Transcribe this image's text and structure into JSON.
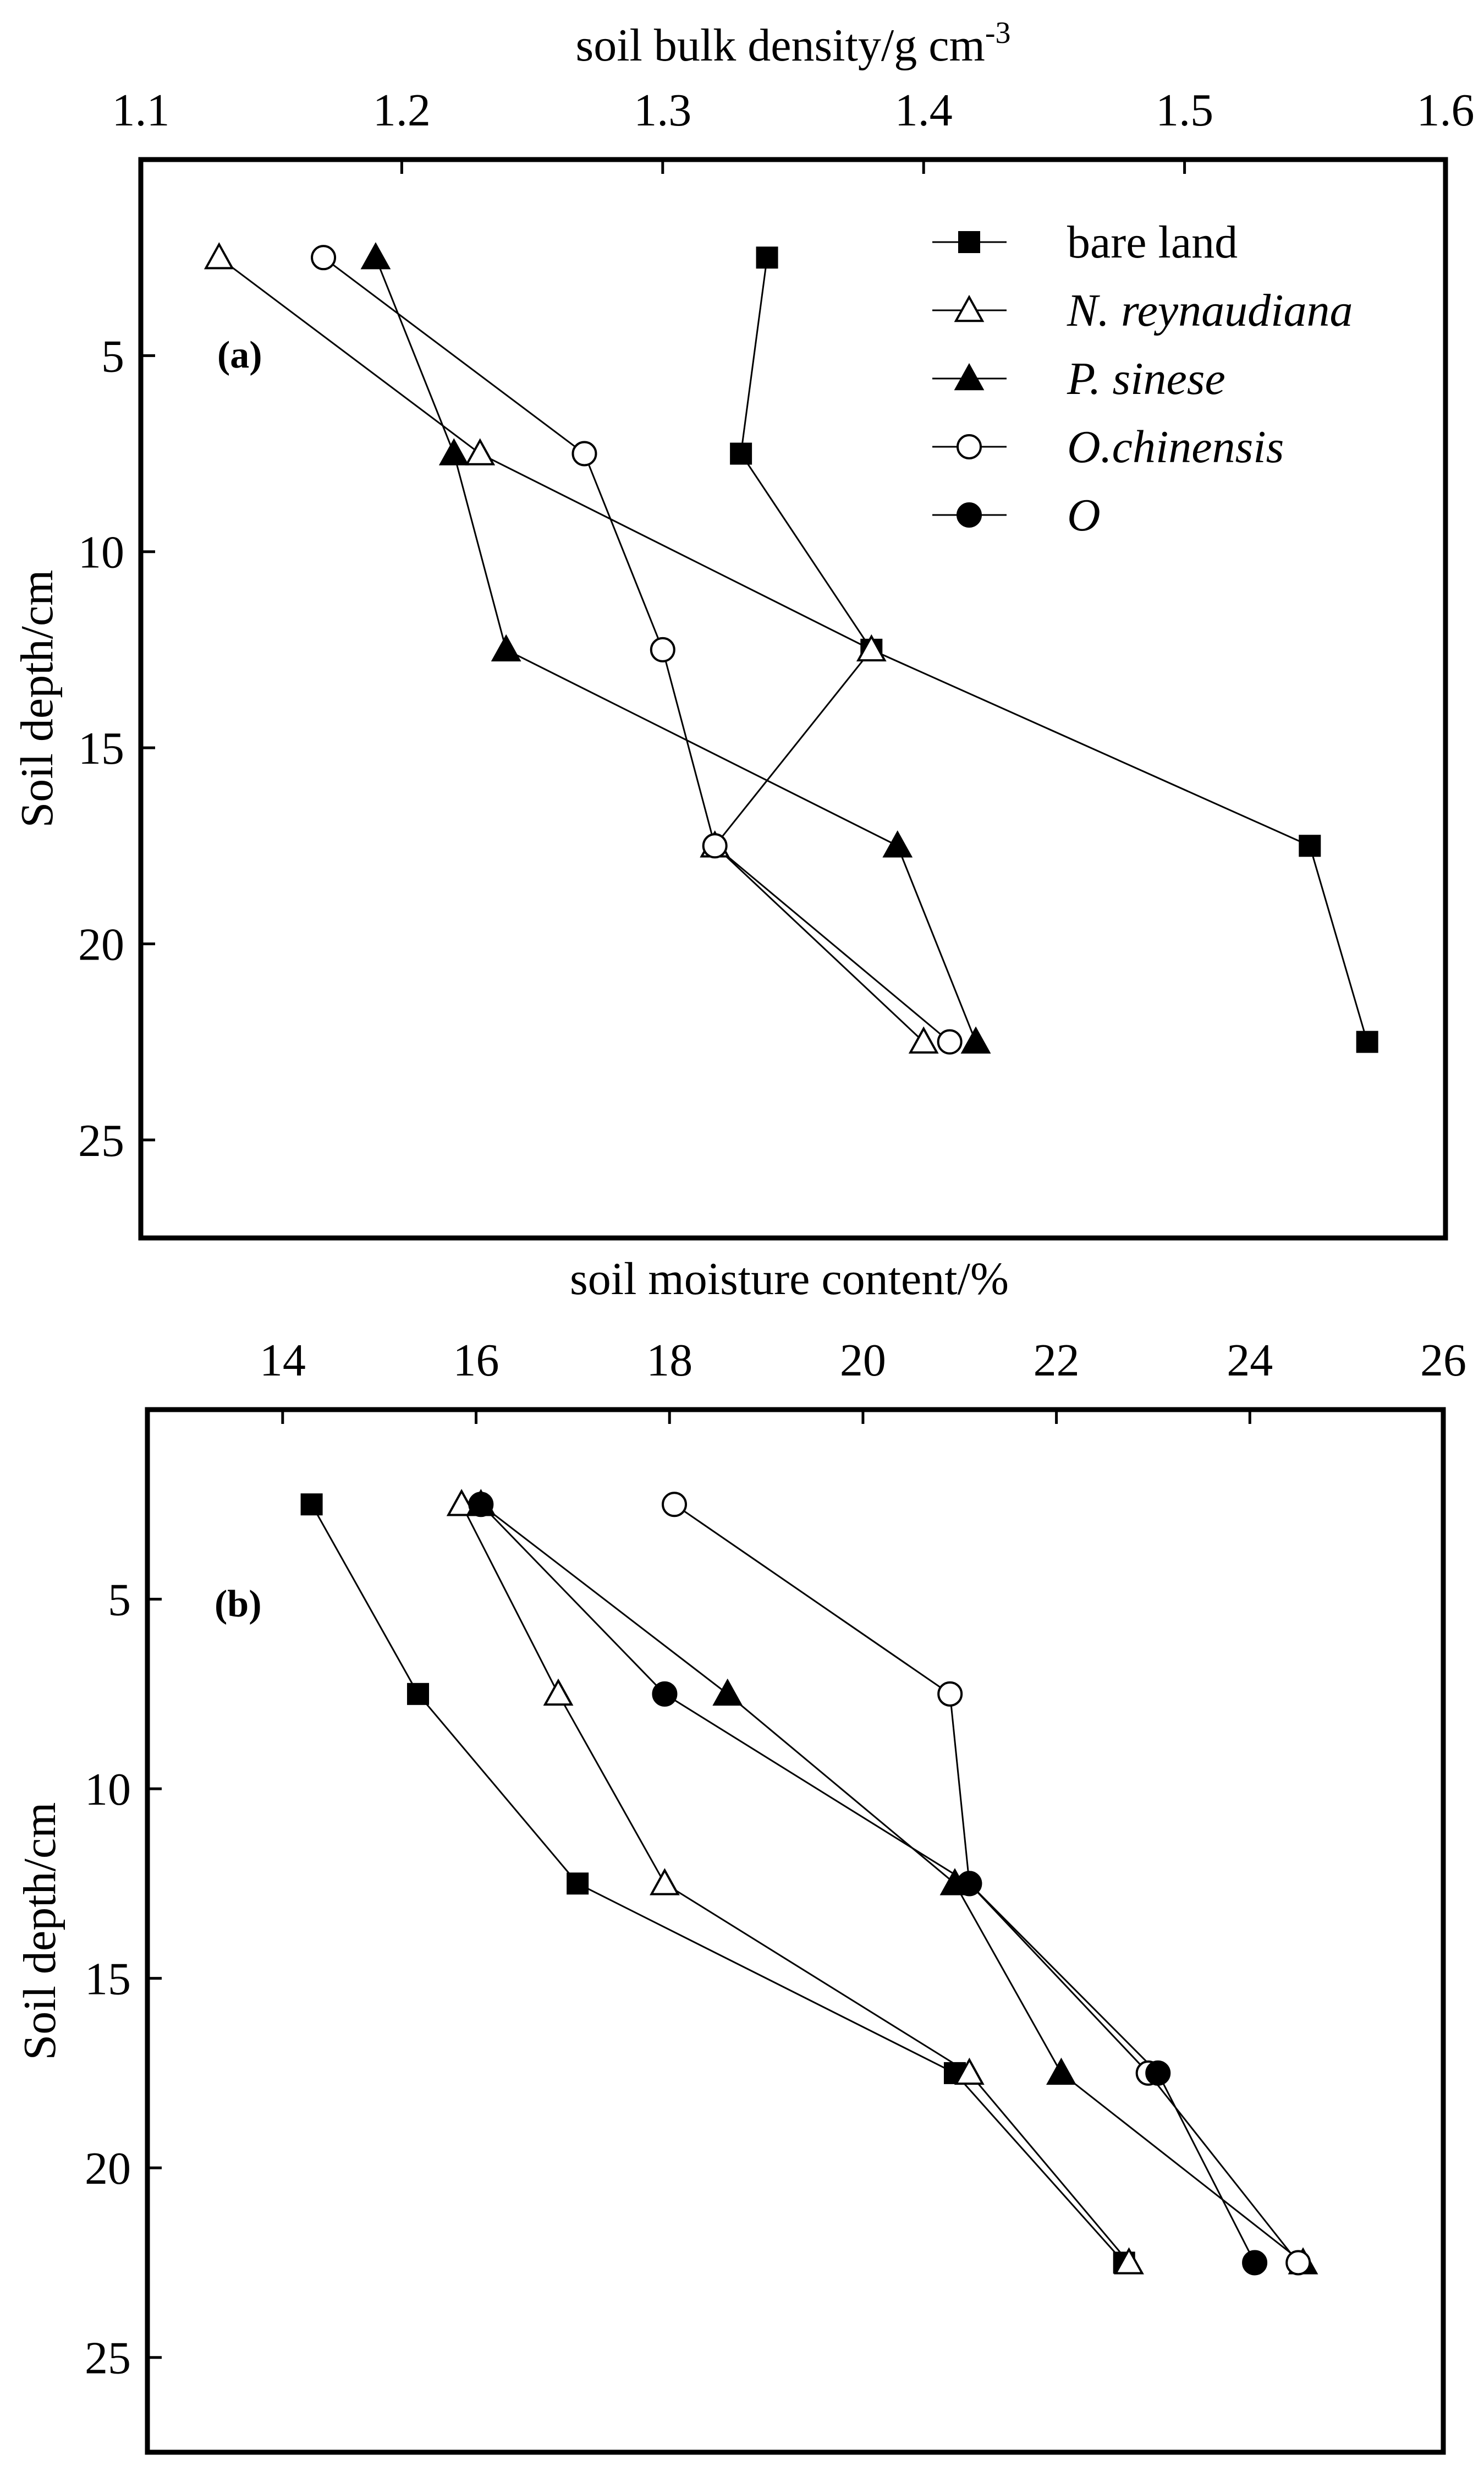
{
  "chart_data": [
    {
      "panel": "(a)",
      "type": "line",
      "xlabel": "soil bulk density/g cm",
      "xlabel_sup": "-3",
      "ylabel": "Soil depth/cm",
      "xlim": [
        1.1,
        1.6
      ],
      "ylim": [
        0,
        27.5
      ],
      "y_inverted": true,
      "x_ticks": [
        1.1,
        1.2,
        1.3,
        1.4,
        1.5,
        1.6
      ],
      "x_tick_labels": [
        "1.1",
        "1.2",
        "1.3",
        "1.4",
        "1.5",
        "1.6"
      ],
      "y_ticks": [
        5,
        10,
        15,
        20,
        25
      ],
      "y_tick_labels": [
        "5",
        "10",
        "15",
        "20",
        "25"
      ],
      "x_axis_position": "top",
      "legend_position": "top-right",
      "series": [
        {
          "name": "bare land",
          "marker": "square-filled",
          "x": [
            1.34,
            1.33,
            1.38,
            1.548,
            1.57
          ],
          "y": [
            2.5,
            7.5,
            12.5,
            17.5,
            22.5
          ]
        },
        {
          "name": "N. reynaudiana",
          "italic": true,
          "marker": "triangle-open",
          "x": [
            1.13,
            1.23,
            1.38,
            1.32,
            1.4
          ],
          "y": [
            2.5,
            7.5,
            12.5,
            17.5,
            22.5
          ]
        },
        {
          "name": "P. sinese",
          "italic": true,
          "marker": "triangle-filled",
          "x": [
            1.19,
            1.22,
            1.24,
            1.39,
            1.42
          ],
          "y": [
            2.5,
            7.5,
            12.5,
            17.5,
            22.5
          ]
        },
        {
          "name": "O.chinensis",
          "italic": true,
          "marker": "circle-open",
          "x": [
            1.17,
            1.27,
            1.3,
            1.32,
            1.41
          ],
          "y": [
            2.5,
            7.5,
            12.5,
            17.5,
            22.5
          ]
        },
        {
          "name": "O",
          "italic": true,
          "marker": "circle-filled",
          "x": [],
          "y": []
        }
      ]
    },
    {
      "panel": "(b)",
      "type": "line",
      "xlabel": "soil moisture content/%",
      "ylabel": "Soil depth/cm",
      "xlim": [
        13,
        26
      ],
      "ylim": [
        0,
        27.5
      ],
      "y_inverted": true,
      "x_ticks": [
        14,
        16,
        18,
        20,
        22,
        24,
        26
      ],
      "x_tick_labels": [
        "14",
        "16",
        "18",
        "20",
        "22",
        "24",
        "26"
      ],
      "y_ticks": [
        5,
        10,
        15,
        20,
        25
      ],
      "y_tick_labels": [
        "5",
        "10",
        "15",
        "20",
        "25"
      ],
      "x_axis_position": "top",
      "series": [
        {
          "name": "bare land",
          "marker": "square-filled",
          "x": [
            14.3,
            15.4,
            17.05,
            20.95,
            22.7
          ],
          "y": [
            2.5,
            7.5,
            12.5,
            17.5,
            22.5
          ]
        },
        {
          "name": "N. reynaudiana",
          "italic": true,
          "marker": "triangle-open",
          "x": [
            15.85,
            16.85,
            17.95,
            21.1,
            22.75
          ],
          "y": [
            2.5,
            7.5,
            12.5,
            17.5,
            22.5
          ]
        },
        {
          "name": "P. sinese",
          "italic": true,
          "marker": "triangle-filled",
          "x": [
            16.05,
            18.6,
            20.95,
            22.05,
            24.55
          ],
          "y": [
            2.5,
            7.5,
            12.5,
            17.5,
            22.5
          ]
        },
        {
          "name": "O.chinensis",
          "italic": true,
          "marker": "circle-open",
          "x": [
            18.05,
            20.9,
            21.1,
            22.95,
            24.5
          ],
          "y": [
            2.5,
            7.5,
            12.5,
            17.5,
            22.5
          ]
        },
        {
          "name": "O",
          "italic": true,
          "marker": "circle-filled",
          "x": [
            16.05,
            17.95,
            21.1,
            23.05,
            24.05
          ],
          "y": [
            2.5,
            7.5,
            12.5,
            17.5,
            22.5
          ]
        }
      ]
    }
  ]
}
